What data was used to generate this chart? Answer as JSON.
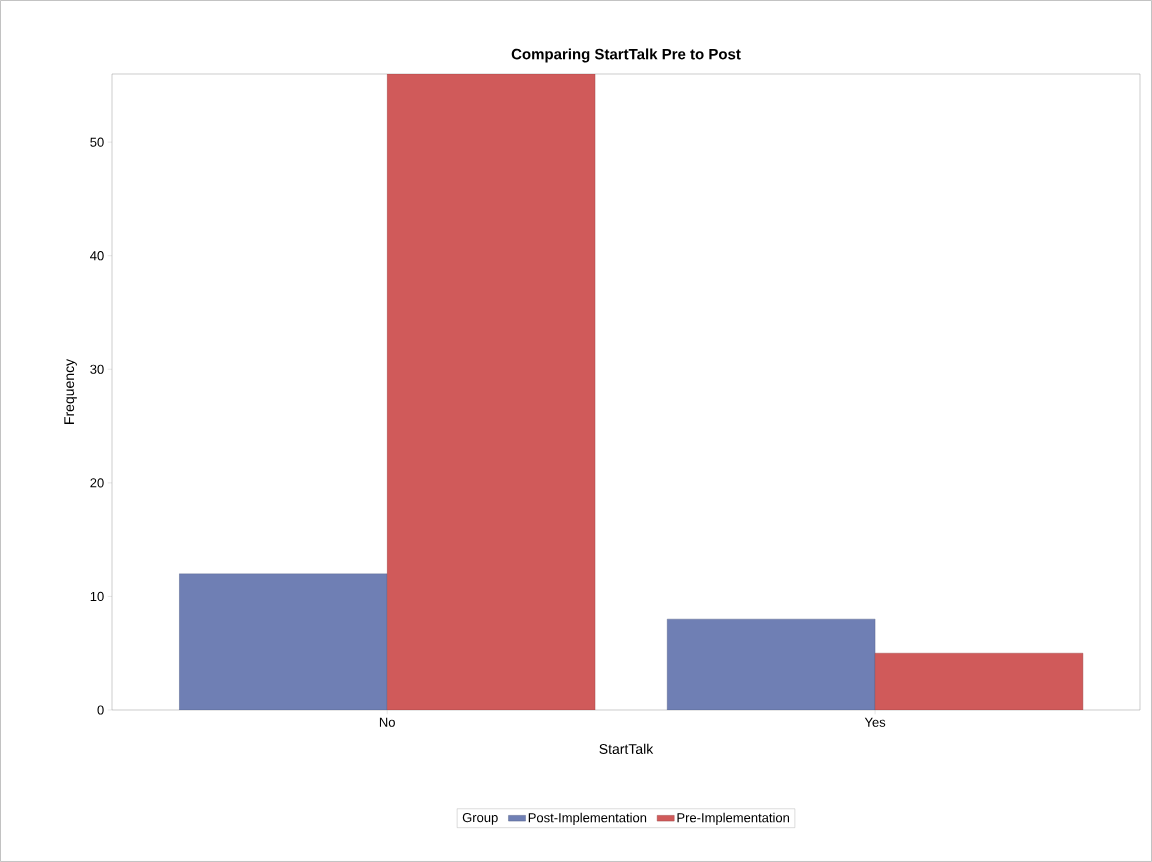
{
  "chart_data": {
    "type": "bar",
    "title": "Comparing StartTalk Pre to Post",
    "xlabel": "StartTalk",
    "ylabel": "Frequency",
    "legend_title": "Group",
    "categories": [
      "No",
      "Yes"
    ],
    "series": [
      {
        "name": "Post-Implementation",
        "color": "#6f7fb4",
        "values": [
          12,
          8
        ]
      },
      {
        "name": "Pre-Implementation",
        "color": "#d05a5a",
        "values": [
          56,
          5
        ]
      }
    ],
    "ylim": [
      0,
      56
    ],
    "yticks": [
      0,
      10,
      20,
      30,
      40,
      50
    ],
    "legend": "bottom"
  }
}
